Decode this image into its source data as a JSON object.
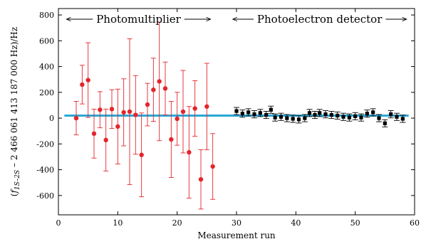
{
  "chart_data": {
    "type": "scatter",
    "xlabel": "Measurement run",
    "ylabel": {
      "prefix": "(",
      "f": "f",
      "subscript": "1S–2S",
      "rest": " – 2 466 061 413 187 000 Hz)/Hz"
    },
    "xlim": [
      0,
      60
    ],
    "ylim": [
      -750,
      850
    ],
    "x_ticks": [
      0,
      10,
      20,
      30,
      40,
      50,
      60
    ],
    "y_ticks": [
      -600,
      -400,
      -200,
      0,
      200,
      400,
      600,
      800
    ],
    "grid": false,
    "reference_line": {
      "y": 20,
      "x_start": 1,
      "x_end": 59,
      "color": "#29a8d6"
    },
    "regions": [
      {
        "label": "Photomultiplier",
        "x_start": 1,
        "x_end": 26
      },
      {
        "label": "Photoelectron detector",
        "x_start": 29,
        "x_end": 59
      }
    ],
    "series": [
      {
        "marker": "circle",
        "color": "#e3252c",
        "points": [
          {
            "x": 3,
            "y": 0,
            "err": 130
          },
          {
            "x": 4,
            "y": 260,
            "err": 150
          },
          {
            "x": 5,
            "y": 295,
            "err": 290
          },
          {
            "x": 6,
            "y": -120,
            "err": 190
          },
          {
            "x": 7,
            "y": 65,
            "err": 140
          },
          {
            "x": 8,
            "y": -170,
            "err": 240
          },
          {
            "x": 9,
            "y": 70,
            "err": 150
          },
          {
            "x": 10,
            "y": -65,
            "err": 290
          },
          {
            "x": 11,
            "y": 45,
            "err": 260
          },
          {
            "x": 12,
            "y": 50,
            "err": 565
          },
          {
            "x": 13,
            "y": 25,
            "err": 305
          },
          {
            "x": 14,
            "y": -285,
            "err": 325
          },
          {
            "x": 15,
            "y": 105,
            "err": 165
          },
          {
            "x": 16,
            "y": 220,
            "err": 245
          },
          {
            "x": 17,
            "y": 285,
            "err": 460
          },
          {
            "x": 18,
            "y": 230,
            "err": 205
          },
          {
            "x": 19,
            "y": -165,
            "err": 295
          },
          {
            "x": 20,
            "y": -5,
            "err": 205
          },
          {
            "x": 21,
            "y": 50,
            "err": 320
          },
          {
            "x": 22,
            "y": -265,
            "err": 355
          },
          {
            "x": 23,
            "y": 75,
            "err": 215
          },
          {
            "x": 24,
            "y": -475,
            "err": 230
          },
          {
            "x": 25,
            "y": 90,
            "err": 335
          },
          {
            "x": 26,
            "y": -375,
            "err": 255
          }
        ]
      },
      {
        "marker": "square",
        "color": "#000000",
        "points": [
          {
            "x": 30,
            "y": 55,
            "err": 28
          },
          {
            "x": 31,
            "y": 35,
            "err": 28
          },
          {
            "x": 32,
            "y": 45,
            "err": 28
          },
          {
            "x": 33,
            "y": 30,
            "err": 28
          },
          {
            "x": 34,
            "y": 40,
            "err": 28
          },
          {
            "x": 35,
            "y": 25,
            "err": 28
          },
          {
            "x": 35.8,
            "y": 65,
            "err": 28
          },
          {
            "x": 36.5,
            "y": 5,
            "err": 28
          },
          {
            "x": 37.5,
            "y": 10,
            "err": 28
          },
          {
            "x": 38.5,
            "y": 0,
            "err": 28
          },
          {
            "x": 39.5,
            "y": -5,
            "err": 28
          },
          {
            "x": 40.5,
            "y": -10,
            "err": 28
          },
          {
            "x": 41.5,
            "y": 0,
            "err": 28
          },
          {
            "x": 42.3,
            "y": 40,
            "err": 28
          },
          {
            "x": 43.2,
            "y": 25,
            "err": 28
          },
          {
            "x": 44,
            "y": 40,
            "err": 28
          },
          {
            "x": 45,
            "y": 30,
            "err": 28
          },
          {
            "x": 46,
            "y": 25,
            "err": 28
          },
          {
            "x": 47,
            "y": 20,
            "err": 28
          },
          {
            "x": 48,
            "y": 10,
            "err": 28
          },
          {
            "x": 49,
            "y": 5,
            "err": 28
          },
          {
            "x": 50,
            "y": 15,
            "err": 28
          },
          {
            "x": 51,
            "y": 5,
            "err": 28
          },
          {
            "x": 52,
            "y": 35,
            "err": 28
          },
          {
            "x": 53,
            "y": 45,
            "err": 28
          },
          {
            "x": 54,
            "y": 0,
            "err": 28
          },
          {
            "x": 55,
            "y": -40,
            "err": 28
          },
          {
            "x": 56,
            "y": 30,
            "err": 28
          },
          {
            "x": 57,
            "y": 10,
            "err": 28
          },
          {
            "x": 58,
            "y": -5,
            "err": 28
          }
        ]
      }
    ]
  }
}
